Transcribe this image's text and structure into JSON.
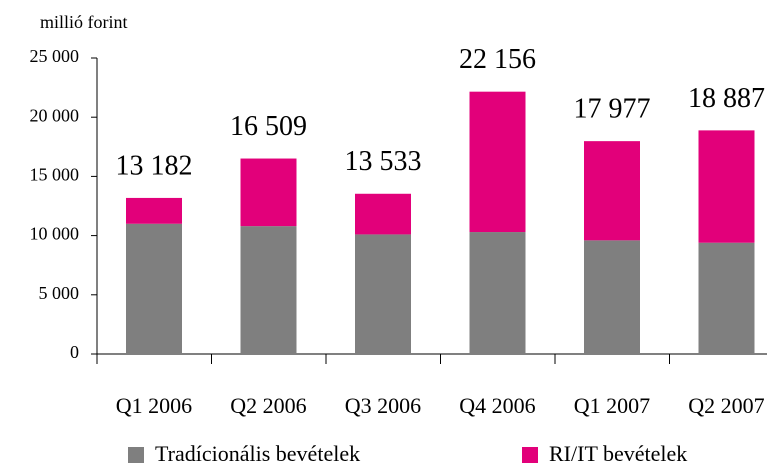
{
  "chart_data": {
    "type": "stacked_bar",
    "y_label": "millió forint",
    "categories": [
      "Q1 2006",
      "Q2 2006",
      "Q3 2006",
      "Q4 2006",
      "Q1 2007",
      "Q2 2007"
    ],
    "series": [
      {
        "name": "Tradícionális bevételek",
        "color": "#7f7f7f",
        "values": [
          11000,
          10800,
          10100,
          10300,
          9600,
          9400
        ]
      },
      {
        "name": "RI/IT bevételek",
        "color": "#e2007a",
        "values": [
          2182,
          5709,
          3433,
          11856,
          8377,
          9487
        ]
      }
    ],
    "totals": [
      13182,
      16509,
      13533,
      22156,
      17977,
      18887
    ],
    "total_labels": [
      "13 182",
      "16 509",
      "13 533",
      "22 156",
      "17 977",
      "18 887"
    ],
    "ylim": [
      0,
      25000
    ],
    "yticks": [
      0,
      {
        "value": 5000,
        "label": "5 000"
      },
      {
        "value": 10000,
        "label": "10 000"
      },
      {
        "value": 15000,
        "label": "15 000"
      },
      {
        "value": 20000,
        "label": "20 000"
      },
      {
        "value": 25000,
        "label": "25 000"
      }
    ]
  }
}
